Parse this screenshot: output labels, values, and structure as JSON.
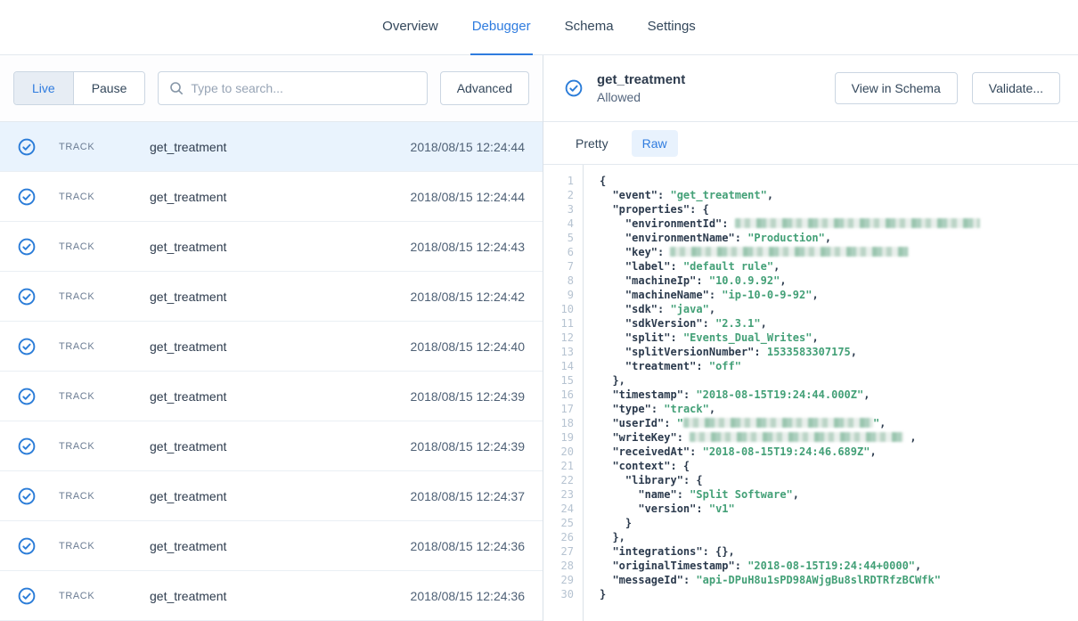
{
  "nav": {
    "tabs": [
      {
        "label": "Overview",
        "active": false
      },
      {
        "label": "Debugger",
        "active": true
      },
      {
        "label": "Schema",
        "active": false
      },
      {
        "label": "Settings",
        "active": false
      }
    ]
  },
  "colors": {
    "accent_blue": "#2f7cdf",
    "icon_blue": "#2a7cd8",
    "code_green": "#43a077",
    "selected_row_bg": "#e9f3fd",
    "raw_tab_bg": "#e8f2fd"
  },
  "left_panel": {
    "live_label": "Live",
    "pause_label": "Pause",
    "search_placeholder": "Type to search...",
    "advanced_label": "Advanced",
    "rows": [
      {
        "type": "TRACK",
        "name": "get_treatment",
        "timestamp": "2018/08/15 12:24:44",
        "selected": true
      },
      {
        "type": "TRACK",
        "name": "get_treatment",
        "timestamp": "2018/08/15 12:24:44",
        "selected": false
      },
      {
        "type": "TRACK",
        "name": "get_treatment",
        "timestamp": "2018/08/15 12:24:43",
        "selected": false
      },
      {
        "type": "TRACK",
        "name": "get_treatment",
        "timestamp": "2018/08/15 12:24:42",
        "selected": false
      },
      {
        "type": "TRACK",
        "name": "get_treatment",
        "timestamp": "2018/08/15 12:24:40",
        "selected": false
      },
      {
        "type": "TRACK",
        "name": "get_treatment",
        "timestamp": "2018/08/15 12:24:39",
        "selected": false
      },
      {
        "type": "TRACK",
        "name": "get_treatment",
        "timestamp": "2018/08/15 12:24:39",
        "selected": false
      },
      {
        "type": "TRACK",
        "name": "get_treatment",
        "timestamp": "2018/08/15 12:24:37",
        "selected": false
      },
      {
        "type": "TRACK",
        "name": "get_treatment",
        "timestamp": "2018/08/15 12:24:36",
        "selected": false
      },
      {
        "type": "TRACK",
        "name": "get_treatment",
        "timestamp": "2018/08/15 12:24:36",
        "selected": false
      }
    ]
  },
  "detail_panel": {
    "title": "get_treatment",
    "status": "Allowed",
    "buttons": {
      "view_in_schema": "View in Schema",
      "validate": "Validate..."
    },
    "view_tabs": {
      "pretty": "Pretty",
      "raw": "Raw"
    },
    "code": {
      "lines": [
        [
          [
            "p",
            "{"
          ]
        ],
        [
          [
            "p",
            "  "
          ],
          [
            "k",
            "\"event\""
          ],
          [
            "p",
            ": "
          ],
          [
            "s",
            "\"get_treatment\""
          ],
          [
            "p",
            ","
          ]
        ],
        [
          [
            "p",
            "  "
          ],
          [
            "k",
            "\"properties\""
          ],
          [
            "p",
            ": {"
          ]
        ],
        [
          [
            "p",
            "    "
          ],
          [
            "k",
            "\"environmentId\""
          ],
          [
            "p",
            ": "
          ],
          [
            "r",
            275
          ]
        ],
        [
          [
            "p",
            "    "
          ],
          [
            "k",
            "\"environmentName\""
          ],
          [
            "p",
            ": "
          ],
          [
            "s",
            "\"Production\""
          ],
          [
            "p",
            ","
          ]
        ],
        [
          [
            "p",
            "    "
          ],
          [
            "k",
            "\"key\""
          ],
          [
            "p",
            ": "
          ],
          [
            "r",
            268
          ]
        ],
        [
          [
            "p",
            "    "
          ],
          [
            "k",
            "\"label\""
          ],
          [
            "p",
            ": "
          ],
          [
            "s",
            "\"default rule\""
          ],
          [
            "p",
            ","
          ]
        ],
        [
          [
            "p",
            "    "
          ],
          [
            "k",
            "\"machineIp\""
          ],
          [
            "p",
            ": "
          ],
          [
            "s",
            "\"10.0.9.92\""
          ],
          [
            "p",
            ","
          ]
        ],
        [
          [
            "p",
            "    "
          ],
          [
            "k",
            "\"machineName\""
          ],
          [
            "p",
            ": "
          ],
          [
            "s",
            "\"ip-10-0-9-92\""
          ],
          [
            "p",
            ","
          ]
        ],
        [
          [
            "p",
            "    "
          ],
          [
            "k",
            "\"sdk\""
          ],
          [
            "p",
            ": "
          ],
          [
            "s",
            "\"java\""
          ],
          [
            "p",
            ","
          ]
        ],
        [
          [
            "p",
            "    "
          ],
          [
            "k",
            "\"sdkVersion\""
          ],
          [
            "p",
            ": "
          ],
          [
            "s",
            "\"2.3.1\""
          ],
          [
            "p",
            ","
          ]
        ],
        [
          [
            "p",
            "    "
          ],
          [
            "k",
            "\"split\""
          ],
          [
            "p",
            ": "
          ],
          [
            "s",
            "\"Events_Dual_Writes\""
          ],
          [
            "p",
            ","
          ]
        ],
        [
          [
            "p",
            "    "
          ],
          [
            "k",
            "\"splitVersionNumber\""
          ],
          [
            "p",
            ": "
          ],
          [
            "n",
            "1533583307175"
          ],
          [
            "p",
            ","
          ]
        ],
        [
          [
            "p",
            "    "
          ],
          [
            "k",
            "\"treatment\""
          ],
          [
            "p",
            ": "
          ],
          [
            "s",
            "\"off\""
          ]
        ],
        [
          [
            "p",
            "  },"
          ]
        ],
        [
          [
            "p",
            "  "
          ],
          [
            "k",
            "\"timestamp\""
          ],
          [
            "p",
            ": "
          ],
          [
            "s",
            "\"2018-08-15T19:24:44.000Z\""
          ],
          [
            "p",
            ","
          ]
        ],
        [
          [
            "p",
            "  "
          ],
          [
            "k",
            "\"type\""
          ],
          [
            "p",
            ": "
          ],
          [
            "s",
            "\"track\""
          ],
          [
            "p",
            ","
          ]
        ],
        [
          [
            "p",
            "  "
          ],
          [
            "k",
            "\"userId\""
          ],
          [
            "p",
            ": "
          ],
          [
            "s",
            "\""
          ],
          [
            "r",
            213
          ],
          [
            "s",
            "\""
          ],
          [
            "p",
            ","
          ]
        ],
        [
          [
            "p",
            "  "
          ],
          [
            "k",
            "\"writeKey\""
          ],
          [
            "p",
            ": "
          ],
          [
            "r",
            240
          ],
          [
            "p",
            " ,"
          ]
        ],
        [
          [
            "p",
            "  "
          ],
          [
            "k",
            "\"receivedAt\""
          ],
          [
            "p",
            ": "
          ],
          [
            "s",
            "\"2018-08-15T19:24:46.689Z\""
          ],
          [
            "p",
            ","
          ]
        ],
        [
          [
            "p",
            "  "
          ],
          [
            "k",
            "\"context\""
          ],
          [
            "p",
            ": {"
          ]
        ],
        [
          [
            "p",
            "    "
          ],
          [
            "k",
            "\"library\""
          ],
          [
            "p",
            ": {"
          ]
        ],
        [
          [
            "p",
            "      "
          ],
          [
            "k",
            "\"name\""
          ],
          [
            "p",
            ": "
          ],
          [
            "s",
            "\"Split Software\""
          ],
          [
            "p",
            ","
          ]
        ],
        [
          [
            "p",
            "      "
          ],
          [
            "k",
            "\"version\""
          ],
          [
            "p",
            ": "
          ],
          [
            "s",
            "\"v1\""
          ]
        ],
        [
          [
            "p",
            "    }"
          ]
        ],
        [
          [
            "p",
            "  },"
          ]
        ],
        [
          [
            "p",
            "  "
          ],
          [
            "k",
            "\"integrations\""
          ],
          [
            "p",
            ": {},"
          ]
        ],
        [
          [
            "p",
            "  "
          ],
          [
            "k",
            "\"originalTimestamp\""
          ],
          [
            "p",
            ": "
          ],
          [
            "s",
            "\"2018-08-15T19:24:44+0000\""
          ],
          [
            "p",
            ","
          ]
        ],
        [
          [
            "p",
            "  "
          ],
          [
            "k",
            "\"messageId\""
          ],
          [
            "p",
            ": "
          ],
          [
            "s",
            "\"api-DPuH8u1sPD98AWjgBu8slRDTRfzBCWfk\""
          ]
        ],
        [
          [
            "p",
            "}"
          ]
        ]
      ]
    }
  }
}
